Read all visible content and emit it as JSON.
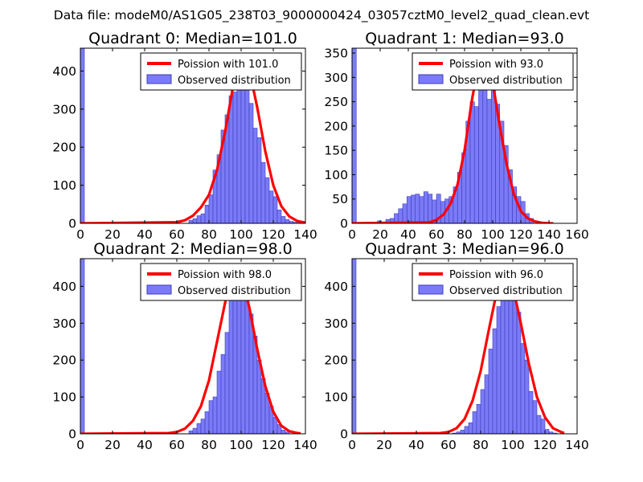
{
  "figure": {
    "suptitle": "Data file: modeM0/AS1G05_238T03_9000000424_03057cztM0_level2_quad_clean.evt",
    "colors": {
      "bar_fill": "#7b7bf7",
      "bar_edge": "#3b3bc0",
      "curve": "#ff0000",
      "axis": "#000000",
      "background": "#ffffff"
    }
  },
  "chart_data": [
    {
      "type": "bar",
      "title": "Quadrant 0: Median=101.0",
      "median": 101.0,
      "legend": [
        "Poission with 101.0",
        "Observed distribution"
      ],
      "legend_position": "top-right",
      "xlim": [
        0,
        140
      ],
      "ylim": [
        0,
        460
      ],
      "xticks": [
        0,
        20,
        40,
        60,
        80,
        100,
        120,
        140
      ],
      "yticks": [
        0,
        100,
        200,
        300,
        400
      ],
      "bin_width": 2.5,
      "bins_x": [
        0,
        67.5,
        70,
        72.5,
        75,
        77.5,
        80,
        82.5,
        85,
        87.5,
        90,
        92.5,
        95,
        97.5,
        100,
        102.5,
        105,
        107.5,
        110,
        112.5,
        115,
        117.5,
        120,
        122.5,
        125,
        127.5,
        130,
        132.5,
        135
      ],
      "bins_y": [
        460,
        8,
        12,
        20,
        25,
        48,
        75,
        140,
        180,
        245,
        285,
        335,
        345,
        425,
        435,
        385,
        315,
        250,
        225,
        160,
        120,
        85,
        70,
        35,
        18,
        10,
        5,
        3,
        1
      ],
      "curve_x": [
        0,
        60,
        65,
        70,
        75,
        80,
        85,
        90,
        95,
        100,
        105,
        110,
        115,
        120,
        125,
        130,
        135,
        140
      ],
      "curve_y": [
        0,
        3,
        8,
        20,
        42,
        75,
        140,
        240,
        360,
        430,
        405,
        305,
        190,
        100,
        45,
        18,
        6,
        2
      ]
    },
    {
      "type": "bar",
      "title": "Quadrant 1: Median=93.0",
      "median": 93.0,
      "legend": [
        "Poission with 93.0",
        "Observed distribution"
      ],
      "legend_position": "top-right",
      "xlim": [
        0,
        160
      ],
      "ylim": [
        0,
        360
      ],
      "xticks": [
        0,
        20,
        40,
        60,
        80,
        100,
        120,
        140,
        160
      ],
      "yticks": [
        0,
        50,
        100,
        150,
        200,
        250,
        300,
        350
      ],
      "bin_width": 3,
      "bins_x": [
        0,
        18,
        21,
        24,
        27,
        30,
        33,
        36,
        39,
        42,
        45,
        48,
        51,
        54,
        57,
        60,
        63,
        66,
        69,
        72,
        75,
        78,
        81,
        84,
        87,
        90,
        93,
        96,
        99,
        102,
        105,
        108,
        111,
        114,
        117,
        120,
        123,
        126
      ],
      "bins_y": [
        360,
        5,
        3,
        8,
        10,
        20,
        30,
        40,
        55,
        58,
        60,
        55,
        65,
        60,
        48,
        60,
        45,
        50,
        55,
        75,
        105,
        145,
        210,
        250,
        240,
        310,
        315,
        255,
        275,
        245,
        210,
        160,
        110,
        75,
        55,
        45,
        20,
        10
      ],
      "curve_x": [
        0,
        55,
        60,
        65,
        70,
        75,
        80,
        85,
        90,
        95,
        100,
        105,
        110,
        115,
        120,
        125,
        130,
        135,
        140,
        143
      ],
      "curve_y": [
        0,
        2,
        7,
        18,
        40,
        80,
        150,
        250,
        330,
        345,
        290,
        200,
        120,
        60,
        25,
        10,
        4,
        1,
        0,
        0
      ]
    },
    {
      "type": "bar",
      "title": "Quadrant 2: Median=98.0",
      "median": 98.0,
      "legend": [
        "Poission with 98.0",
        "Observed distribution"
      ],
      "legend_position": "top-right",
      "xlim": [
        0,
        140
      ],
      "ylim": [
        0,
        475
      ],
      "xticks": [
        0,
        20,
        40,
        60,
        80,
        100,
        120,
        140
      ],
      "yticks": [
        0,
        100,
        200,
        300,
        400
      ],
      "bin_width": 2.5,
      "bins_x": [
        0,
        67.5,
        70,
        72.5,
        75,
        77.5,
        80,
        82.5,
        85,
        87.5,
        90,
        92.5,
        95,
        97.5,
        100,
        102.5,
        105,
        107.5,
        110,
        112.5,
        115,
        117.5,
        120,
        122.5,
        125,
        127.5
      ],
      "bins_y": [
        475,
        8,
        15,
        28,
        40,
        60,
        90,
        100,
        170,
        215,
        275,
        365,
        430,
        445,
        445,
        385,
        325,
        265,
        200,
        150,
        110,
        75,
        45,
        25,
        10,
        5
      ],
      "curve_x": [
        0,
        55,
        60,
        65,
        70,
        75,
        80,
        85,
        90,
        95,
        100,
        105,
        110,
        115,
        120,
        125,
        130,
        135,
        137
      ],
      "curve_y": [
        0,
        2,
        5,
        14,
        35,
        75,
        145,
        250,
        355,
        430,
        425,
        345,
        230,
        130,
        60,
        22,
        7,
        2,
        1
      ]
    },
    {
      "type": "bar",
      "title": "Quadrant 3: Median=96.0",
      "median": 96.0,
      "legend": [
        "Poission with 96.0",
        "Observed distribution"
      ],
      "legend_position": "top-right",
      "xlim": [
        0,
        140
      ],
      "ylim": [
        0,
        475
      ],
      "xticks": [
        0,
        20,
        40,
        60,
        80,
        100,
        120,
        140
      ],
      "yticks": [
        0,
        100,
        200,
        300,
        400
      ],
      "bin_width": 2.5,
      "bins_x": [
        0,
        62.5,
        65,
        67.5,
        70,
        72.5,
        75,
        77.5,
        80,
        82.5,
        85,
        87.5,
        90,
        92.5,
        95,
        97.5,
        100,
        102.5,
        105,
        107.5,
        110,
        112.5,
        115,
        117.5,
        120,
        122.5,
        125
      ],
      "bins_y": [
        475,
        2,
        5,
        10,
        20,
        30,
        60,
        80,
        120,
        160,
        230,
        285,
        345,
        445,
        445,
        440,
        390,
        330,
        245,
        200,
        115,
        90,
        50,
        40,
        12,
        5,
        2
      ],
      "curve_x": [
        0,
        55,
        60,
        65,
        70,
        75,
        80,
        85,
        90,
        95,
        100,
        105,
        110,
        115,
        120,
        125,
        130,
        132
      ],
      "curve_y": [
        0,
        2,
        5,
        15,
        40,
        90,
        170,
        280,
        385,
        440,
        400,
        300,
        190,
        100,
        45,
        15,
        5,
        2
      ]
    }
  ]
}
